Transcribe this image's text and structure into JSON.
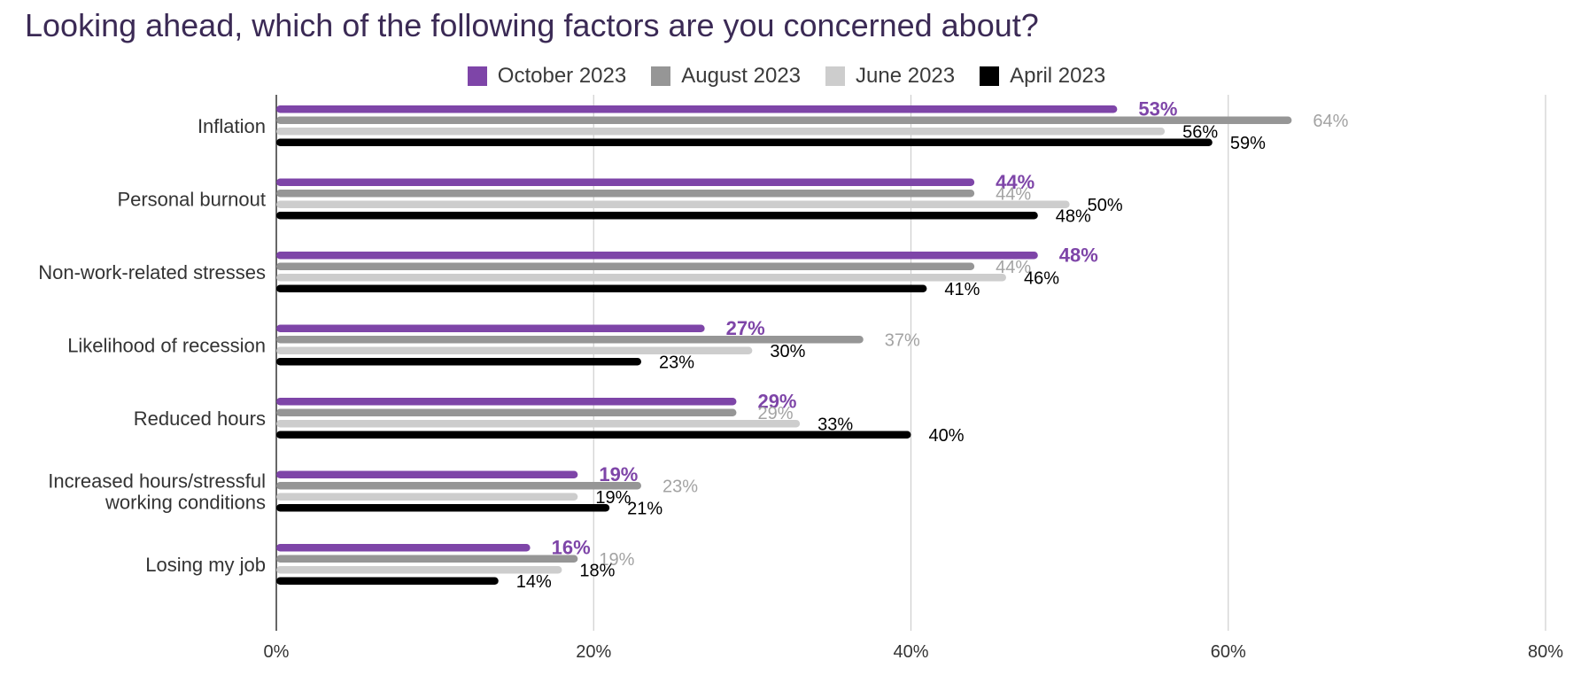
{
  "chart_data": {
    "type": "bar",
    "orientation": "horizontal",
    "title": "Looking ahead, which of the following factors are you concerned about?",
    "categories": [
      "Inflation",
      "Personal burnout",
      "Non-work-related stresses",
      "Likelihood of recession",
      "Reduced hours",
      "Increased hours/stressful working conditions",
      "Losing my job"
    ],
    "category_lines": [
      [
        "Inflation"
      ],
      [
        "Personal burnout"
      ],
      [
        "Non-work-related stresses"
      ],
      [
        "Likelihood of recession"
      ],
      [
        "Reduced hours"
      ],
      [
        "Increased hours/stressful",
        "working conditions"
      ],
      [
        "Losing my job"
      ]
    ],
    "series": [
      {
        "name": "October 2023",
        "color": "#7e45a8",
        "label_color": "#7e45a8",
        "bold_labels": true,
        "values": [
          53,
          44,
          48,
          27,
          29,
          19,
          16
        ]
      },
      {
        "name": "August 2023",
        "color": "#969696",
        "label_color": "#a3a3a3",
        "bold_labels": false,
        "values": [
          64,
          44,
          44,
          37,
          29,
          23,
          19
        ]
      },
      {
        "name": "June 2023",
        "color": "#cdcdcd",
        "label_color": "#000000",
        "bold_labels": false,
        "values": [
          56,
          50,
          46,
          30,
          33,
          19,
          18
        ]
      },
      {
        "name": "April 2023",
        "color": "#000000",
        "label_color": "#000000",
        "bold_labels": false,
        "values": [
          59,
          48,
          41,
          23,
          40,
          21,
          14
        ]
      }
    ],
    "xlim": [
      0,
      80
    ],
    "xticks": [
      0,
      20,
      40,
      60,
      80
    ],
    "tick_suffix": "%",
    "value_suffix": "%",
    "grid": true,
    "legend_position": "top-center"
  }
}
